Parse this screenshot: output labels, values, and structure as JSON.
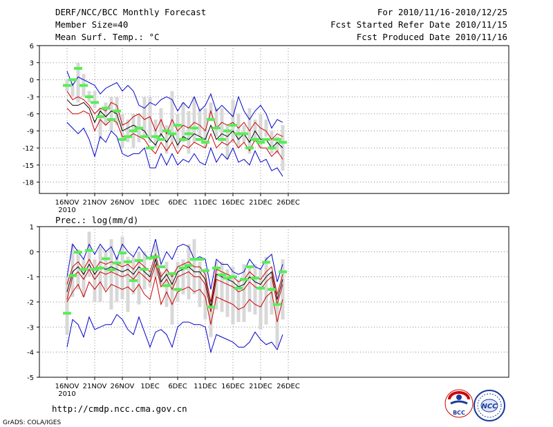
{
  "header": {
    "title": "DERF/NCC/BCC Monthly Forecast",
    "member_size": "Member Size=40",
    "period": "For 2010/11/16-2010/12/25",
    "started": "Fcst Started Refer Date 2010/11/15",
    "produced": "Fcst Produced Date 2010/11/16"
  },
  "footer": {
    "url": "http://cmdp.ncc.cma.gov.cn",
    "credit": "GrADS: COLA/IGES",
    "logo_left": "BCC",
    "logo_right": "NCC"
  },
  "colors": {
    "envelope": "#0000cc",
    "spread": "#cc0000",
    "mean": "#000000",
    "observed": "#55ee55",
    "bar": "#d8d8d8",
    "grid": "#888888"
  },
  "chart_data": [
    {
      "type": "line",
      "title": "Mean Surf. Temp.: °C",
      "ylim": [
        -20,
        6
      ],
      "yticks": [
        6,
        3,
        0,
        -3,
        -6,
        -9,
        -12,
        -15,
        -18
      ],
      "xticks": [
        "16NOV",
        "21NOV",
        "26NOV",
        "1DEC",
        "6DEC",
        "11DEC",
        "16DEC",
        "21DEC",
        "26DEC"
      ],
      "xtick_year": "2010",
      "x": [
        0,
        1,
        2,
        3,
        4,
        5,
        6,
        7,
        8,
        9,
        10,
        11,
        12,
        13,
        14,
        15,
        16,
        17,
        18,
        19,
        20,
        21,
        22,
        23,
        24,
        25,
        26,
        27,
        28,
        29,
        30,
        31,
        32,
        33,
        34,
        35,
        36,
        37,
        38,
        39
      ],
      "series": [
        {
          "name": "max",
          "values": [
            1.5,
            -1,
            0.5,
            0,
            -0.5,
            -1,
            -2.5,
            -1.5,
            -1,
            -0.5,
            -2,
            -1,
            -2,
            -4.5,
            -5,
            -4,
            -4.5,
            -3.5,
            -3,
            -3.5,
            -5.5,
            -4,
            -5,
            -3,
            -5.5,
            -4.5,
            -2.5,
            -5.5,
            -4.5,
            -5.5,
            -6.5,
            -3,
            -5.5,
            -7,
            -5.5,
            -4.5,
            -6,
            -8.5,
            -7,
            -7.5
          ]
        },
        {
          "name": "upper",
          "values": [
            -2,
            -3.5,
            -3,
            -3.5,
            -4.5,
            -6,
            -5,
            -5.5,
            -4,
            -4.5,
            -8,
            -7.5,
            -6.5,
            -6,
            -7,
            -6.5,
            -9,
            -7,
            -9.5,
            -7,
            -9,
            -8,
            -8.5,
            -7.5,
            -8,
            -9,
            -5.5,
            -8.5,
            -7.5,
            -8,
            -7.5,
            -8.5,
            -7.5,
            -9,
            -7.5,
            -8.5,
            -9,
            -10.5,
            -9.5,
            -10
          ]
        },
        {
          "name": "mean",
          "values": [
            -3.5,
            -4.5,
            -4.5,
            -4,
            -5,
            -7.5,
            -5.5,
            -6.5,
            -5.5,
            -6,
            -9,
            -8.5,
            -8,
            -8.5,
            -9,
            -10.5,
            -11.5,
            -9.5,
            -11,
            -9.5,
            -11.5,
            -10,
            -10.5,
            -9.5,
            -10,
            -10.5,
            -8,
            -10.5,
            -9.5,
            -10,
            -9,
            -10.5,
            -9.5,
            -11,
            -9,
            -10.5,
            -10.5,
            -12,
            -11,
            -12
          ]
        },
        {
          "name": "lower",
          "values": [
            -5,
            -6,
            -6,
            -5.5,
            -6,
            -9,
            -7,
            -8,
            -7,
            -7.5,
            -10,
            -10,
            -9.5,
            -10,
            -10.5,
            -12,
            -13,
            -11,
            -12.5,
            -11,
            -13,
            -11.5,
            -12,
            -11,
            -11.5,
            -12,
            -9.5,
            -12,
            -11,
            -11.5,
            -10.5,
            -12,
            -11,
            -12.5,
            -10.5,
            -12,
            -12,
            -13.5,
            -12.5,
            -14
          ]
        },
        {
          "name": "min",
          "values": [
            -7.5,
            -8.5,
            -9.5,
            -8.5,
            -10.5,
            -13.5,
            -10,
            -11,
            -9,
            -10,
            -13,
            -13.5,
            -13,
            -13,
            -12,
            -15.5,
            -15.5,
            -13,
            -15,
            -13,
            -15,
            -14,
            -14.5,
            -13,
            -14.5,
            -15,
            -12,
            -14.5,
            -13,
            -14,
            -12,
            -14.5,
            -14,
            -15,
            -12.5,
            -14.5,
            -14,
            -16,
            -15.5,
            -17
          ]
        }
      ],
      "bars": [
        [
          -2,
          0
        ],
        [
          -3,
          -0.5
        ],
        [
          -4,
          3
        ],
        [
          -3,
          1
        ],
        [
          -4,
          -2
        ],
        [
          -5,
          -2
        ],
        [
          -10.5,
          -5
        ],
        [
          -8,
          -4
        ],
        [
          -9,
          -3
        ],
        [
          -8,
          -3
        ],
        [
          -12,
          -6
        ],
        [
          -11,
          -7
        ],
        [
          -12,
          -6
        ],
        [
          -11,
          -6
        ],
        [
          -10,
          -3
        ],
        [
          -11,
          -3
        ],
        [
          -12,
          -7
        ],
        [
          -10,
          -5
        ],
        [
          -13,
          -8
        ],
        [
          -11,
          -2
        ],
        [
          -12,
          -6
        ],
        [
          -11,
          -4
        ],
        [
          -13,
          -5.5
        ],
        [
          -11,
          -3
        ],
        [
          -10,
          -5
        ],
        [
          -12,
          -5
        ],
        [
          -7,
          -4
        ],
        [
          -10,
          -5
        ],
        [
          -11,
          -5
        ],
        [
          -14,
          -8
        ],
        [
          -11,
          -3.5
        ],
        [
          -12,
          -6
        ],
        [
          -11,
          -8
        ],
        [
          -13,
          -5
        ],
        [
          -11,
          -7
        ],
        [
          -12,
          -6
        ],
        [
          -10,
          -7
        ],
        [
          -13,
          -9
        ],
        [
          -13,
          -10
        ],
        [
          -16,
          -8
        ]
      ],
      "observed": [
        -1,
        0,
        2,
        -1,
        -3,
        -4,
        -6.5,
        -5,
        -7,
        -5.5,
        -10.5,
        -10,
        -9,
        -8.5,
        -10,
        -12,
        -10,
        -10.5,
        -9,
        -9.5,
        -8,
        -10.5,
        -9.5,
        -8.5,
        -10.5,
        -11,
        -7,
        -8.5,
        -10.5,
        -9,
        -8,
        -9.5,
        -9.5,
        -12,
        -10.5,
        -11,
        -10.5,
        -12,
        -10.5,
        -11
      ]
    },
    {
      "type": "line",
      "title": "Prec.: log(mm/d)",
      "ylim": [
        -5,
        1
      ],
      "yticks": [
        1,
        0,
        -1,
        -2,
        -3,
        -4,
        -5
      ],
      "xticks": [
        "16NOV",
        "21NOV",
        "26NOV",
        "1DEC",
        "6DEC",
        "11DEC",
        "16DEC",
        "21DEC",
        "26DEC"
      ],
      "xtick_year": "2010",
      "x": [
        0,
        1,
        2,
        3,
        4,
        5,
        6,
        7,
        8,
        9,
        10,
        11,
        12,
        13,
        14,
        15,
        16,
        17,
        18,
        19,
        20,
        21,
        22,
        23,
        24,
        25,
        26,
        27,
        28,
        29,
        30,
        31,
        32,
        33,
        34,
        35,
        36,
        37,
        38,
        39
      ],
      "series": [
        {
          "name": "max",
          "values": [
            -1,
            0.3,
            0,
            -0.3,
            0.3,
            -0.1,
            0.3,
            0,
            0.2,
            -0.3,
            0.3,
            0,
            -0.2,
            0.2,
            -0.1,
            -0.3,
            0.5,
            -0.5,
            0,
            -0.3,
            0.2,
            0.3,
            0.2,
            -0.3,
            -0.2,
            -0.3,
            -1.5,
            -0.3,
            -0.5,
            -0.5,
            -0.8,
            -0.9,
            -0.8,
            -0.3,
            -0.6,
            -0.7,
            -0.3,
            -0.1,
            -1.2,
            -0.5
          ]
        },
        {
          "name": "upper",
          "values": [
            -1.3,
            -0.6,
            -0.4,
            -0.7,
            -0.3,
            -0.7,
            -0.4,
            -0.5,
            -0.4,
            -0.5,
            -0.6,
            -0.5,
            -0.7,
            -0.4,
            -0.6,
            -0.8,
            -0.1,
            -1.0,
            -0.7,
            -1.0,
            -0.6,
            -0.5,
            -0.4,
            -0.6,
            -0.6,
            -0.9,
            -2.0,
            -0.7,
            -0.8,
            -0.9,
            -1.0,
            -1.2,
            -1.1,
            -0.8,
            -1.0,
            -1.1,
            -0.8,
            -0.6,
            -1.7,
            -0.9
          ]
        },
        {
          "name": "mean",
          "values": [
            -1.6,
            -0.8,
            -0.6,
            -0.9,
            -0.5,
            -0.9,
            -0.6,
            -0.7,
            -0.6,
            -0.7,
            -0.8,
            -0.7,
            -0.9,
            -0.6,
            -0.8,
            -1.0,
            -0.3,
            -1.2,
            -0.9,
            -1.3,
            -0.8,
            -0.7,
            -0.6,
            -0.8,
            -0.8,
            -1.1,
            -2.2,
            -0.9,
            -1.0,
            -1.1,
            -1.2,
            -1.4,
            -1.3,
            -1.0,
            -1.2,
            -1.3,
            -1.0,
            -0.8,
            -1.9,
            -1.1
          ]
        },
        {
          "name": "lower",
          "values": [
            -1.9,
            -1.0,
            -0.8,
            -1.1,
            -0.7,
            -1.1,
            -0.8,
            -0.9,
            -0.8,
            -0.9,
            -1.0,
            -0.9,
            -1.1,
            -0.8,
            -1.0,
            -1.2,
            -0.5,
            -1.4,
            -1.1,
            -1.5,
            -1.0,
            -0.9,
            -0.8,
            -1.0,
            -1.0,
            -1.3,
            -2.4,
            -1.1,
            -1.2,
            -1.3,
            -1.4,
            -1.6,
            -1.5,
            -1.2,
            -1.4,
            -1.5,
            -1.2,
            -1.0,
            -2.1,
            -1.3
          ]
        },
        {
          "name": "red_lower",
          "values": [
            -2.0,
            -1.6,
            -1.3,
            -1.8,
            -1.2,
            -1.5,
            -1.2,
            -1.6,
            -1.3,
            -1.4,
            -1.5,
            -1.4,
            -1.6,
            -1.3,
            -1.7,
            -1.9,
            -1.0,
            -2.1,
            -1.6,
            -2.1,
            -1.6,
            -1.5,
            -1.4,
            -1.6,
            -1.5,
            -1.8,
            -2.9,
            -1.8,
            -1.9,
            -2.0,
            -2.1,
            -2.3,
            -2.2,
            -1.9,
            -2.1,
            -2.2,
            -1.8,
            -1.6,
            -2.8,
            -1.9
          ]
        },
        {
          "name": "min",
          "values": [
            -3.8,
            -2.7,
            -2.9,
            -3.4,
            -2.6,
            -3.1,
            -3.0,
            -2.9,
            -2.9,
            -2.5,
            -2.7,
            -3.1,
            -3.3,
            -2.6,
            -3.2,
            -3.8,
            -3.2,
            -3.1,
            -3.3,
            -3.8,
            -3.0,
            -2.8,
            -2.8,
            -2.9,
            -2.9,
            -3.0,
            -4.0,
            -3.3,
            -3.4,
            -3.5,
            -3.6,
            -3.8,
            -3.8,
            -3.6,
            -3.2,
            -3.5,
            -3.7,
            -3.6,
            -3.9,
            -3.3
          ]
        }
      ],
      "bars": [
        [
          -3.3,
          -1.0
        ],
        [
          -1.8,
          0.3
        ],
        [
          -1.5,
          0.1
        ],
        [
          -1.8,
          -0.3
        ],
        [
          -1.0,
          0.8
        ],
        [
          -2.0,
          -0.3
        ],
        [
          -2.0,
          0.2
        ],
        [
          -1.5,
          0.0
        ],
        [
          -2.3,
          0.5
        ],
        [
          -2.0,
          -0.2
        ],
        [
          -1.9,
          0.6
        ],
        [
          -2.4,
          -0.2
        ],
        [
          -1.7,
          -0.2
        ],
        [
          -2.1,
          0.0
        ],
        [
          -1.5,
          0.0
        ],
        [
          -1.4,
          -0.8
        ],
        [
          -1.0,
          0.3
        ],
        [
          -1.3,
          -0.8
        ],
        [
          -2.2,
          -0.4
        ],
        [
          -2.9,
          -0.8
        ],
        [
          -2.0,
          -0.4
        ],
        [
          -1.7,
          -0.3
        ],
        [
          -1.9,
          0.3
        ],
        [
          -1.7,
          0.5
        ],
        [
          -2.2,
          -0.4
        ],
        [
          -2.7,
          -0.8
        ],
        [
          -3.4,
          -1.9
        ],
        [
          -2.3,
          -0.4
        ],
        [
          -2.4,
          -0.4
        ],
        [
          -2.6,
          -0.7
        ],
        [
          -2.9,
          -0.6
        ],
        [
          -2.8,
          -1.1
        ],
        [
          -2.8,
          -0.5
        ],
        [
          -2.4,
          -0.6
        ],
        [
          -2.5,
          -0.5
        ],
        [
          -3.1,
          -0.7
        ],
        [
          -2.9,
          -0.2
        ],
        [
          -2.5,
          -0.8
        ],
        [
          -3.8,
          -1.7
        ],
        [
          -2.7,
          -0.3
        ]
      ],
      "observed": [
        -2.45,
        -0.95,
        -0.02,
        -0.7,
        0.05,
        -0.7,
        -0.65,
        -0.28,
        -0.72,
        -0.45,
        -0.05,
        -0.4,
        -1.15,
        -0.35,
        -0.7,
        -0.25,
        -0.2,
        -0.6,
        -1.35,
        -0.88,
        -1.5,
        -0.65,
        -0.55,
        -0.3,
        -0.3,
        -0.75,
        -2.2,
        -0.65,
        -0.92,
        -1.05,
        -1.0,
        -1.45,
        -1.1,
        -0.6,
        -1.05,
        -1.45,
        -0.42,
        -1.5,
        -2.1,
        -0.8
      ]
    }
  ]
}
